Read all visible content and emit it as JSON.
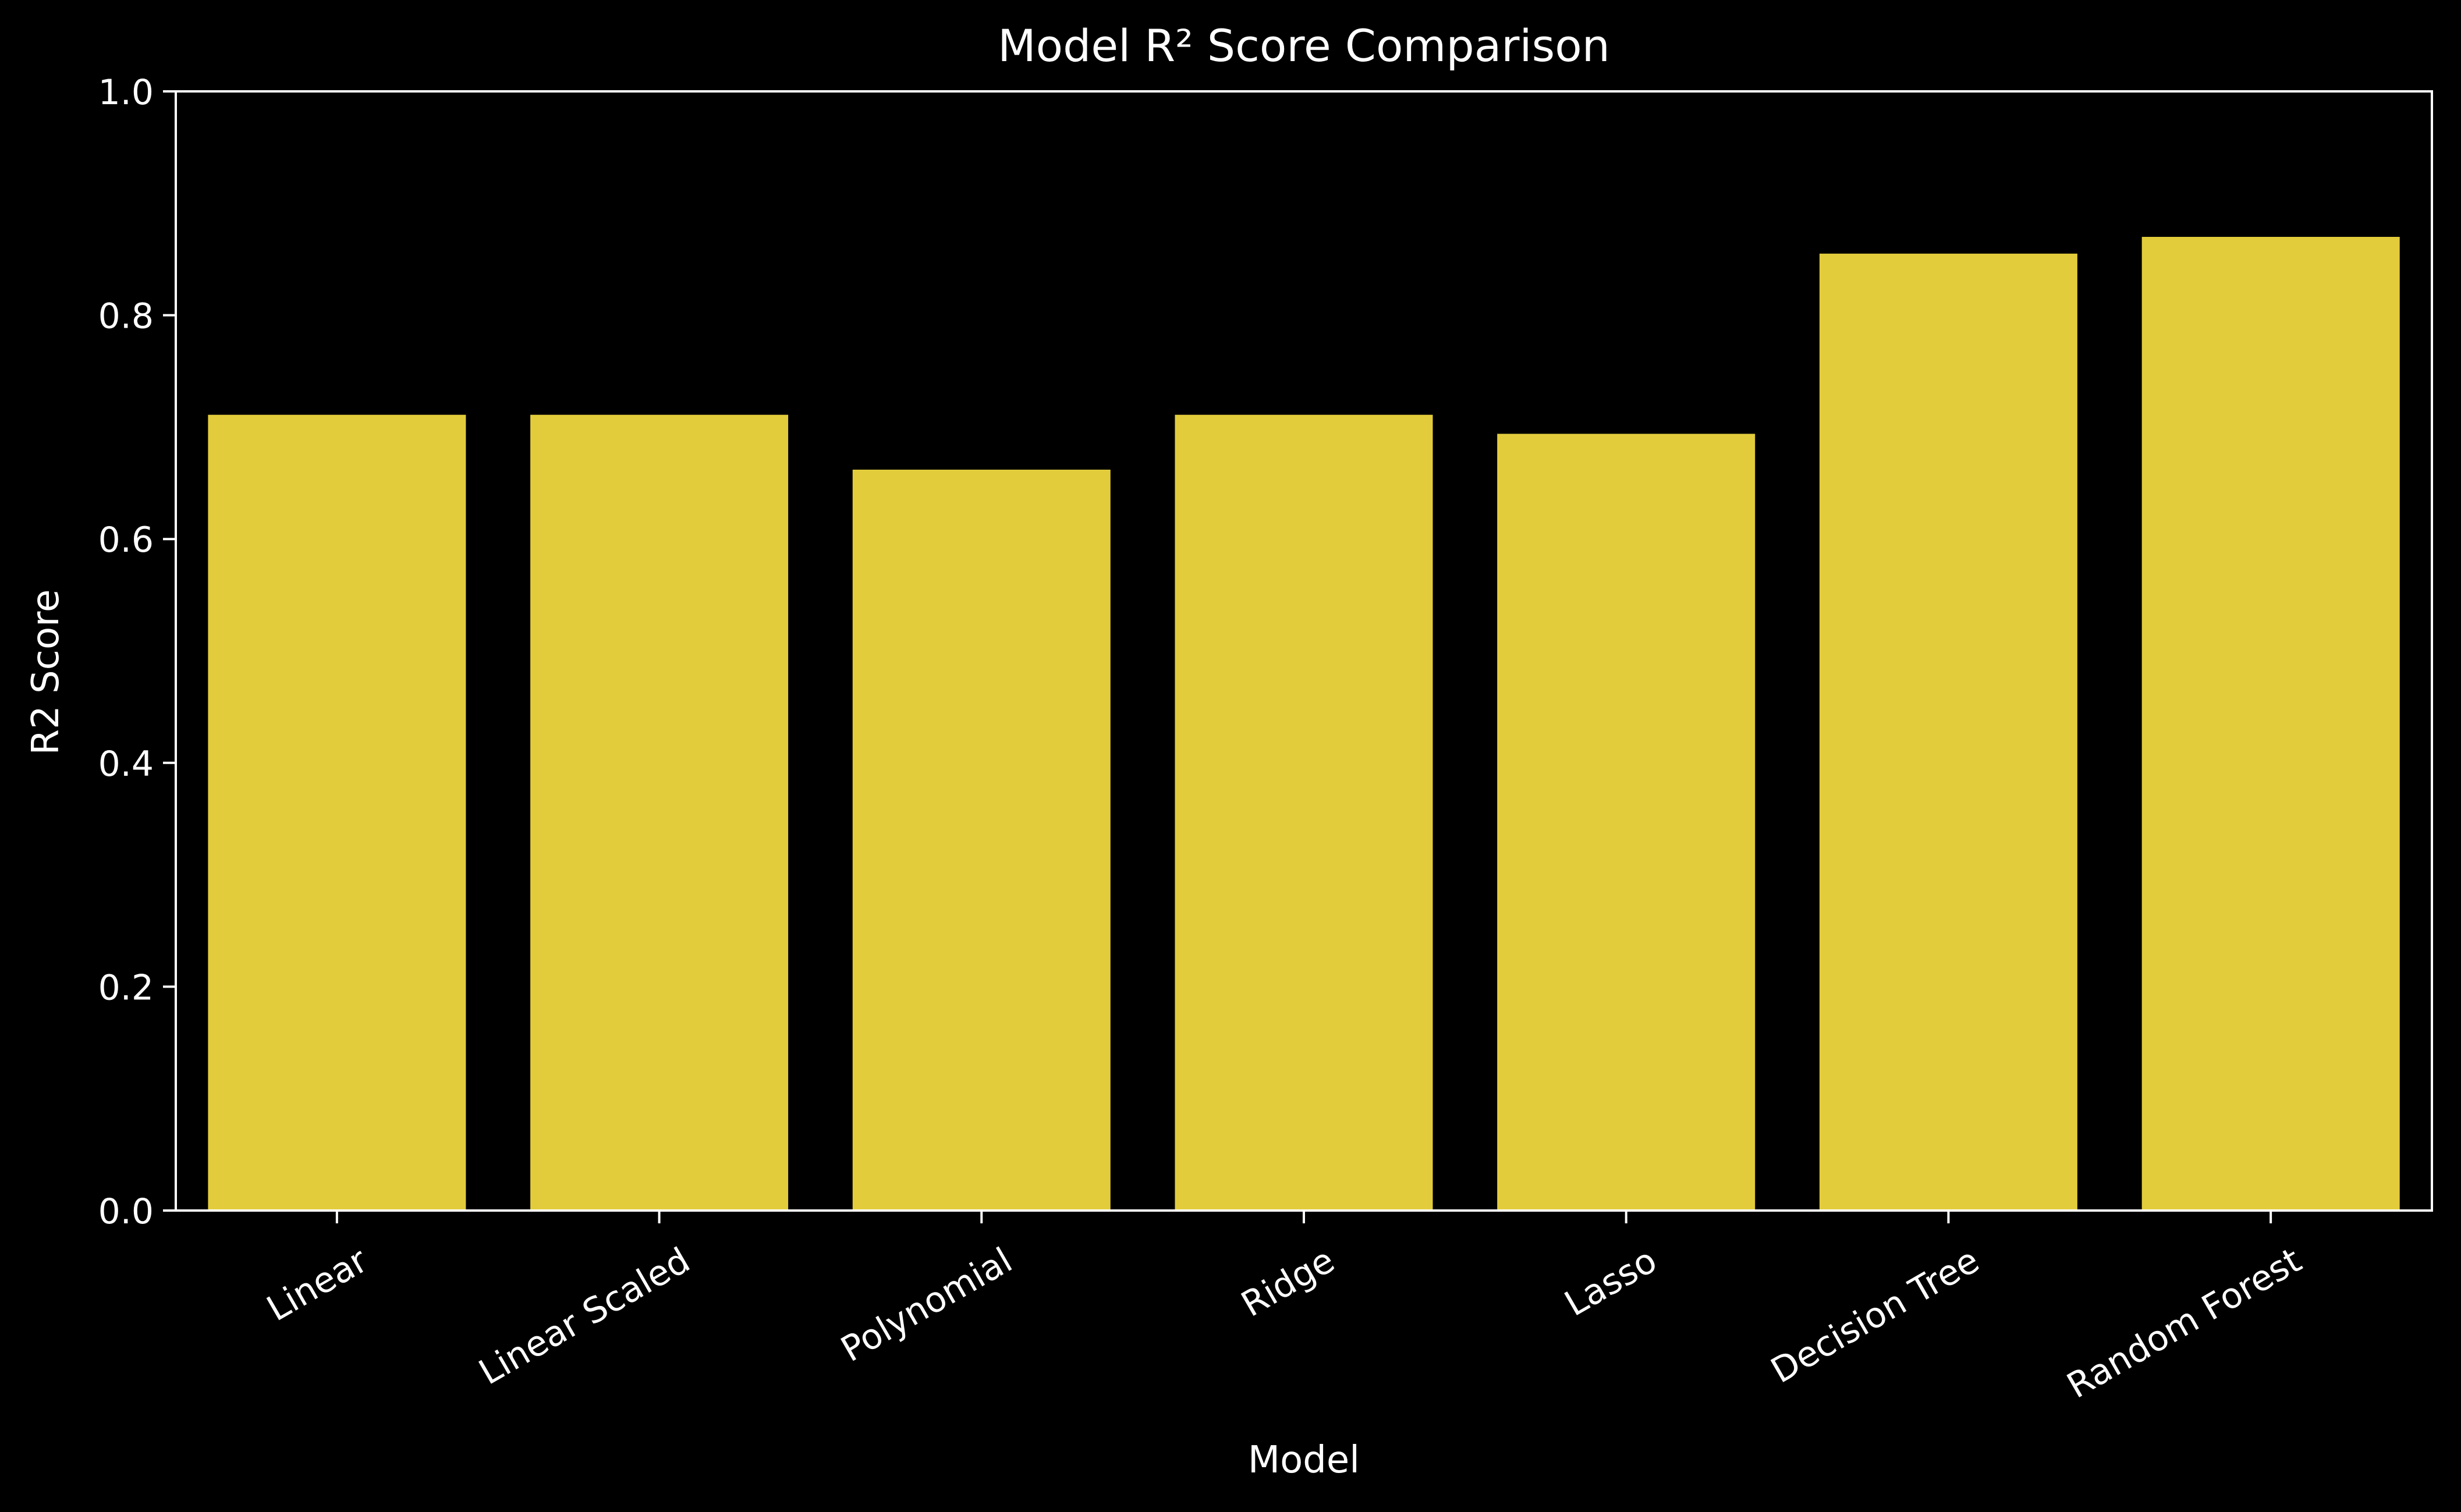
{
  "chart_data": {
    "type": "bar",
    "title": "Model R² Score Comparison",
    "xlabel": "Model",
    "ylabel": "R2 Score",
    "categories": [
      "Linear",
      "Linear Scaled",
      "Polynomial",
      "Ridge",
      "Lasso",
      "Decision Tree",
      "Random Forest"
    ],
    "values": [
      0.711,
      0.711,
      0.662,
      0.711,
      0.694,
      0.855,
      0.87
    ],
    "ylim": [
      0,
      1.0
    ],
    "yticks": [
      0.0,
      0.2,
      0.4,
      0.6,
      0.8,
      1.0
    ],
    "ytick_labels": [
      "0.0",
      "0.2",
      "0.4",
      "0.6",
      "0.8",
      "1.0"
    ],
    "grid": false,
    "colors": {
      "background": "#000000",
      "bar": "#e3cc3b",
      "axis": "#ffffff",
      "text": "#ffffff"
    }
  }
}
